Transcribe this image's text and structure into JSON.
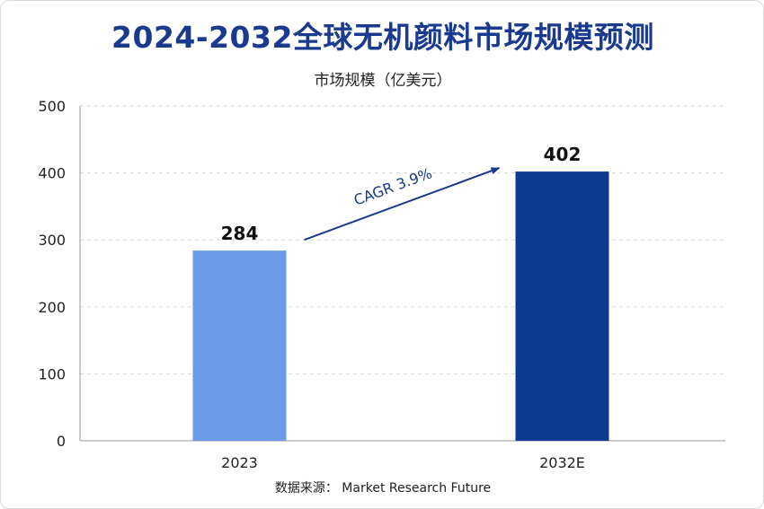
{
  "header": {
    "title": "2024-2032全球无机颜料市场规模预测",
    "subtitle": "市场规模（亿美元）"
  },
  "footer": {
    "source": "数据来源：  Market Research Future"
  },
  "chart_data": {
    "type": "bar",
    "title": "2024-2032全球无机颜料市场规模预测",
    "ylabel": "市场规模（亿美元）",
    "xlabel": "",
    "categories": [
      "2023",
      "2032E"
    ],
    "values": [
      284,
      402
    ],
    "value_labels": [
      "284",
      "402"
    ],
    "ylim": [
      0,
      500
    ],
    "yticks": [
      0,
      100,
      200,
      300,
      400,
      500
    ],
    "grid": true,
    "bar_colors": [
      "#6b9ae6",
      "#0e3a8f"
    ],
    "annotation": {
      "text": "CAGR 3.9%",
      "color": "#1a3a8f"
    }
  }
}
